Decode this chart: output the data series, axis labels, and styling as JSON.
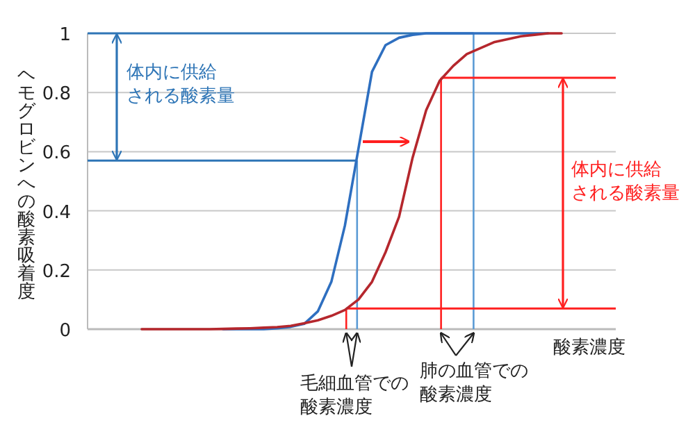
{
  "chart_data": {
    "type": "line",
    "xlabel": "酸素濃度",
    "ylabel": "ヘモグロビンへの酸素吸着度",
    "categories": [
      null,
      null,
      null,
      null,
      null,
      null,
      null,
      null,
      null,
      null,
      null,
      null,
      null,
      null,
      null,
      null,
      null,
      null,
      null,
      null,
      null,
      null,
      null,
      null,
      null,
      null,
      null,
      null,
      null,
      null,
      null,
      null,
      null,
      null,
      null,
      null,
      null,
      null,
      null,
      null
    ],
    "ylim": [
      0,
      1
    ],
    "yticks": [
      0,
      0.2,
      0.4,
      0.6,
      0.8,
      1
    ],
    "tick_labels": "y",
    "grid": "y",
    "marker": "none",
    "series": [
      {
        "color": "#2e6fc0",
        "values": [
          null,
          null,
          null,
          null,
          null,
          null,
          null,
          null,
          null,
          null,
          0,
          0,
          0,
          0,
          0.003,
          0.008,
          0.018,
          0.06,
          0.16,
          0.35,
          0.61,
          0.87,
          0.96,
          0.985,
          0.995,
          1,
          1,
          1,
          1,
          1,
          1,
          1,
          1,
          1,
          1,
          null,
          null,
          null,
          null,
          null
        ]
      },
      {
        "color": "#b5272d",
        "values": [
          null,
          null,
          null,
          null,
          0,
          0,
          0,
          0,
          0,
          0,
          0.001,
          0.002,
          0.003,
          0.005,
          0.007,
          0.011,
          0.02,
          0.03,
          0.045,
          0.065,
          0.1,
          0.16,
          0.26,
          0.38,
          0.58,
          0.74,
          0.84,
          0.89,
          0.93,
          0.95,
          0.97,
          0.98,
          0.99,
          0.995,
          1,
          1,
          null,
          null,
          null,
          null
        ]
      }
    ],
    "ref_lines": [
      {
        "axis": "y",
        "value": 1,
        "color": "#2e75b6"
      },
      {
        "axis": "y",
        "value": 0.57,
        "color": "#2e75b6"
      },
      {
        "axis": "y",
        "value": 0.85,
        "color": "#ff1f1f"
      },
      {
        "axis": "y",
        "value": 0.07,
        "color": "#ff1f1f"
      }
    ],
    "annotations": [
      "体内に供給される酸素量",
      "体内に供給される酸素量",
      "毛細血管での酸素濃度",
      "肺の血管での酸素濃度"
    ]
  }
}
